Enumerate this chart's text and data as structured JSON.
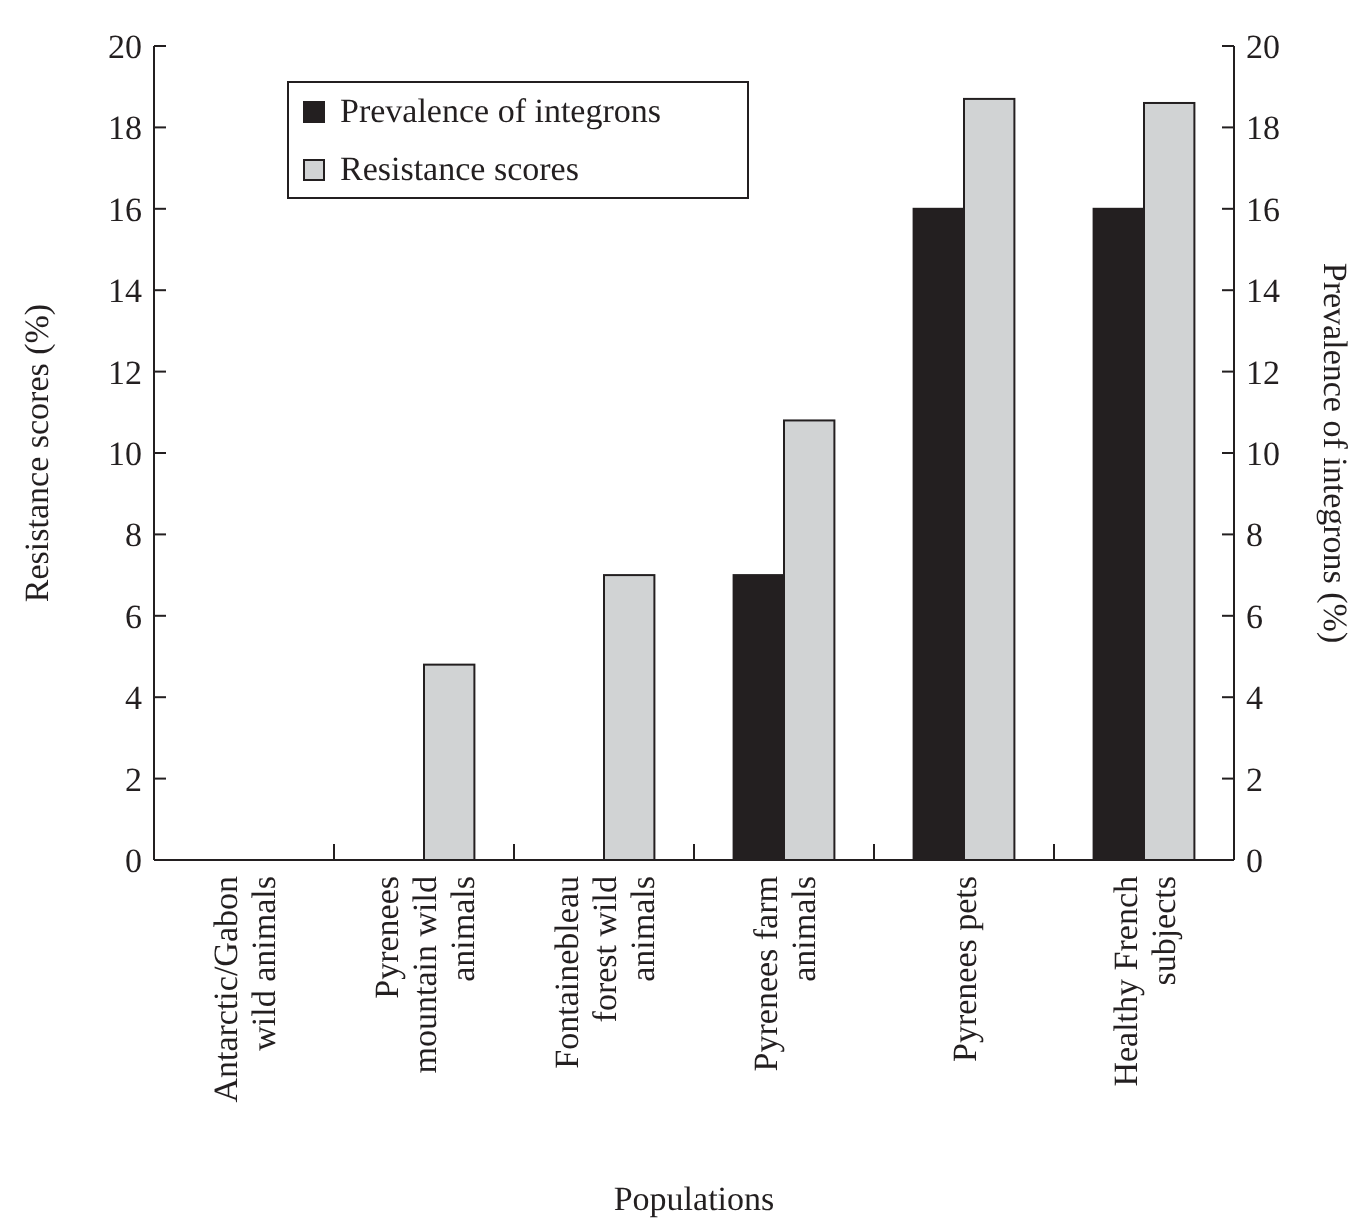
{
  "chart_data": {
    "type": "bar",
    "xlabel": "Populations",
    "ylabel": "Resistance scores (%)",
    "y2label": "Prevalence of integrons (%)",
    "categories": [
      "Antarctic/Gabon wild animals",
      "Pyrenees mountain wild animals",
      "Fontainebleau forest wild animals",
      "Pyrenees farm animals",
      "Pyrenees pets",
      "Healthy French subjects"
    ],
    "series": [
      {
        "name": "Prevalence of integrons",
        "color": "#231f20",
        "values": [
          0,
          0,
          0,
          7,
          16,
          16
        ]
      },
      {
        "name": "Resistance scores",
        "color": "#d1d3d4",
        "values": [
          0,
          4.8,
          7,
          10.8,
          18.7,
          18.6
        ]
      }
    ],
    "ylim": [
      0,
      20
    ],
    "yticks": [
      0,
      2,
      4,
      6,
      8,
      10,
      12,
      14,
      16,
      18,
      20
    ],
    "y2lim": [
      0,
      20
    ],
    "y2ticks": [
      0,
      2,
      4,
      6,
      8,
      10,
      12,
      14,
      16,
      18,
      20
    ],
    "legend": "top left",
    "grid": false
  }
}
